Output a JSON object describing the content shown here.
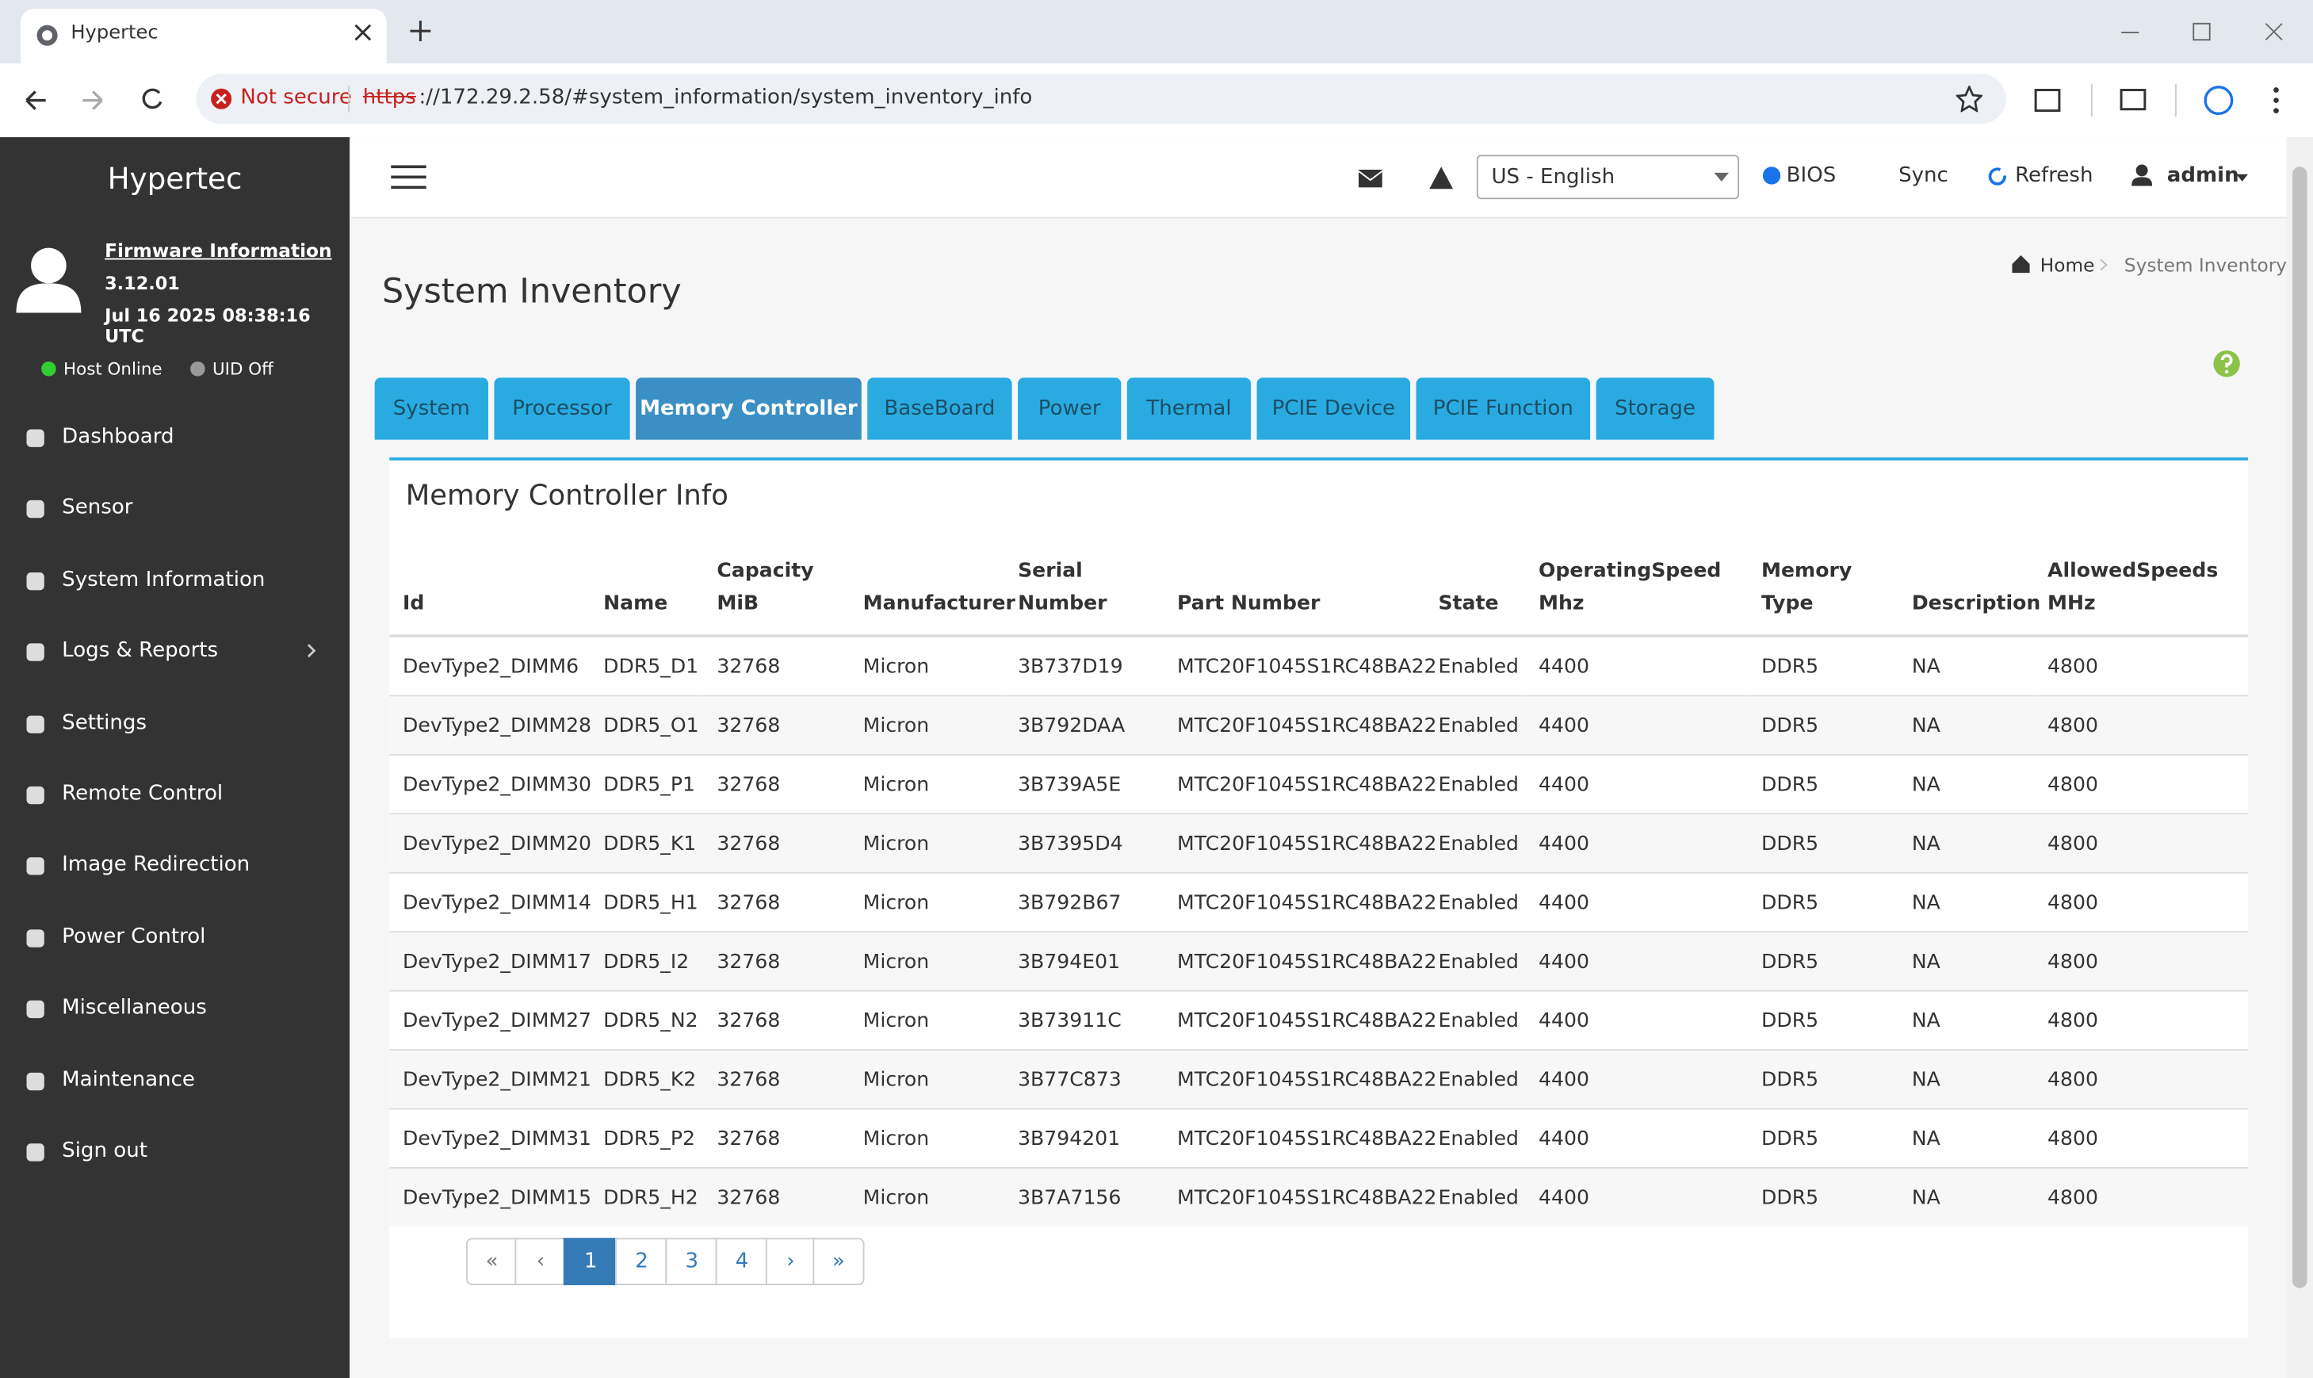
{
  "browser": {
    "tab_title": "Hypertec",
    "security": "Not secure",
    "url_scheme": "https",
    "url_rest": "://172.29.2.58/#system_information/system_inventory_info"
  },
  "sidebar": {
    "brand": "Hypertec",
    "firmware_link": "Firmware Information",
    "firmware_version": "3.12.01",
    "firmware_date": "Jul 16 2025 08:38:16 UTC",
    "host_status": "Host Online",
    "uid_status": "UID Off",
    "menu": [
      "Dashboard",
      "Sensor",
      "System Information",
      "Logs & Reports",
      "Settings",
      "Remote Control",
      "Image Redirection",
      "Power Control",
      "Miscellaneous",
      "Maintenance",
      "Sign out"
    ]
  },
  "header": {
    "language": "US - English",
    "bios": "BIOS",
    "sync": "Sync",
    "refresh": "Refresh",
    "user": "admin"
  },
  "page": {
    "title": "System Inventory",
    "breadcrumb": [
      "Home",
      "System Inventory"
    ]
  },
  "tabs": {
    "items": [
      "System",
      "Processor",
      "Memory Controller",
      "BaseBoard",
      "Power",
      "Thermal",
      "PCIE Device",
      "PCIE Function",
      "Storage"
    ],
    "active": 2
  },
  "table": {
    "title": "Memory Controller Info",
    "columns": [
      "Id",
      "Name",
      "Capacity\nMiB",
      "Manufacturer",
      "Serial\nNumber",
      "Part Number",
      "State",
      "OperatingSpeed\nMhz",
      "Memory\nType",
      "Description",
      "AllowedSpeeds\nMHz"
    ],
    "rows": [
      [
        "DevType2_DIMM6",
        "DDR5_D1",
        32768,
        "Micron",
        "3B737D19",
        "MTC20F1045S1RC48BA22",
        "Enabled",
        4400,
        "DDR5",
        "NA",
        4800
      ],
      [
        "DevType2_DIMM28",
        "DDR5_O1",
        32768,
        "Micron",
        "3B792DAA",
        "MTC20F1045S1RC48BA22",
        "Enabled",
        4400,
        "DDR5",
        "NA",
        4800
      ],
      [
        "DevType2_DIMM30",
        "DDR5_P1",
        32768,
        "Micron",
        "3B739A5E",
        "MTC20F1045S1RC48BA22",
        "Enabled",
        4400,
        "DDR5",
        "NA",
        4800
      ],
      [
        "DevType2_DIMM20",
        "DDR5_K1",
        32768,
        "Micron",
        "3B7395D4",
        "MTC20F1045S1RC48BA22",
        "Enabled",
        4400,
        "DDR5",
        "NA",
        4800
      ],
      [
        "DevType2_DIMM14",
        "DDR5_H1",
        32768,
        "Micron",
        "3B792B67",
        "MTC20F1045S1RC48BA22",
        "Enabled",
        4400,
        "DDR5",
        "NA",
        4800
      ],
      [
        "DevType2_DIMM17",
        "DDR5_I2",
        32768,
        "Micron",
        "3B794E01",
        "MTC20F1045S1RC48BA22",
        "Enabled",
        4400,
        "DDR5",
        "NA",
        4800
      ],
      [
        "DevType2_DIMM27",
        "DDR5_N2",
        32768,
        "Micron",
        "3B73911C",
        "MTC20F1045S1RC48BA22",
        "Enabled",
        4400,
        "DDR5",
        "NA",
        4800
      ],
      [
        "DevType2_DIMM21",
        "DDR5_K2",
        32768,
        "Micron",
        "3B77C873",
        "MTC20F1045S1RC48BA22",
        "Enabled",
        4400,
        "DDR5",
        "NA",
        4800
      ],
      [
        "DevType2_DIMM31",
        "DDR5_P2",
        32768,
        "Micron",
        "3B794201",
        "MTC20F1045S1RC48BA22",
        "Enabled",
        4400,
        "DDR5",
        "NA",
        4800
      ],
      [
        "DevType2_DIMM15",
        "DDR5_H2",
        32768,
        "Micron",
        "3B7A7156",
        "MTC20F1045S1RC48BA22",
        "Enabled",
        4400,
        "DDR5",
        "NA",
        4800
      ]
    ]
  },
  "pagination": {
    "first": "«",
    "prev": "‹",
    "pages": [
      1,
      2,
      3,
      4
    ],
    "next": "›",
    "last": "»",
    "current": 0
  }
}
